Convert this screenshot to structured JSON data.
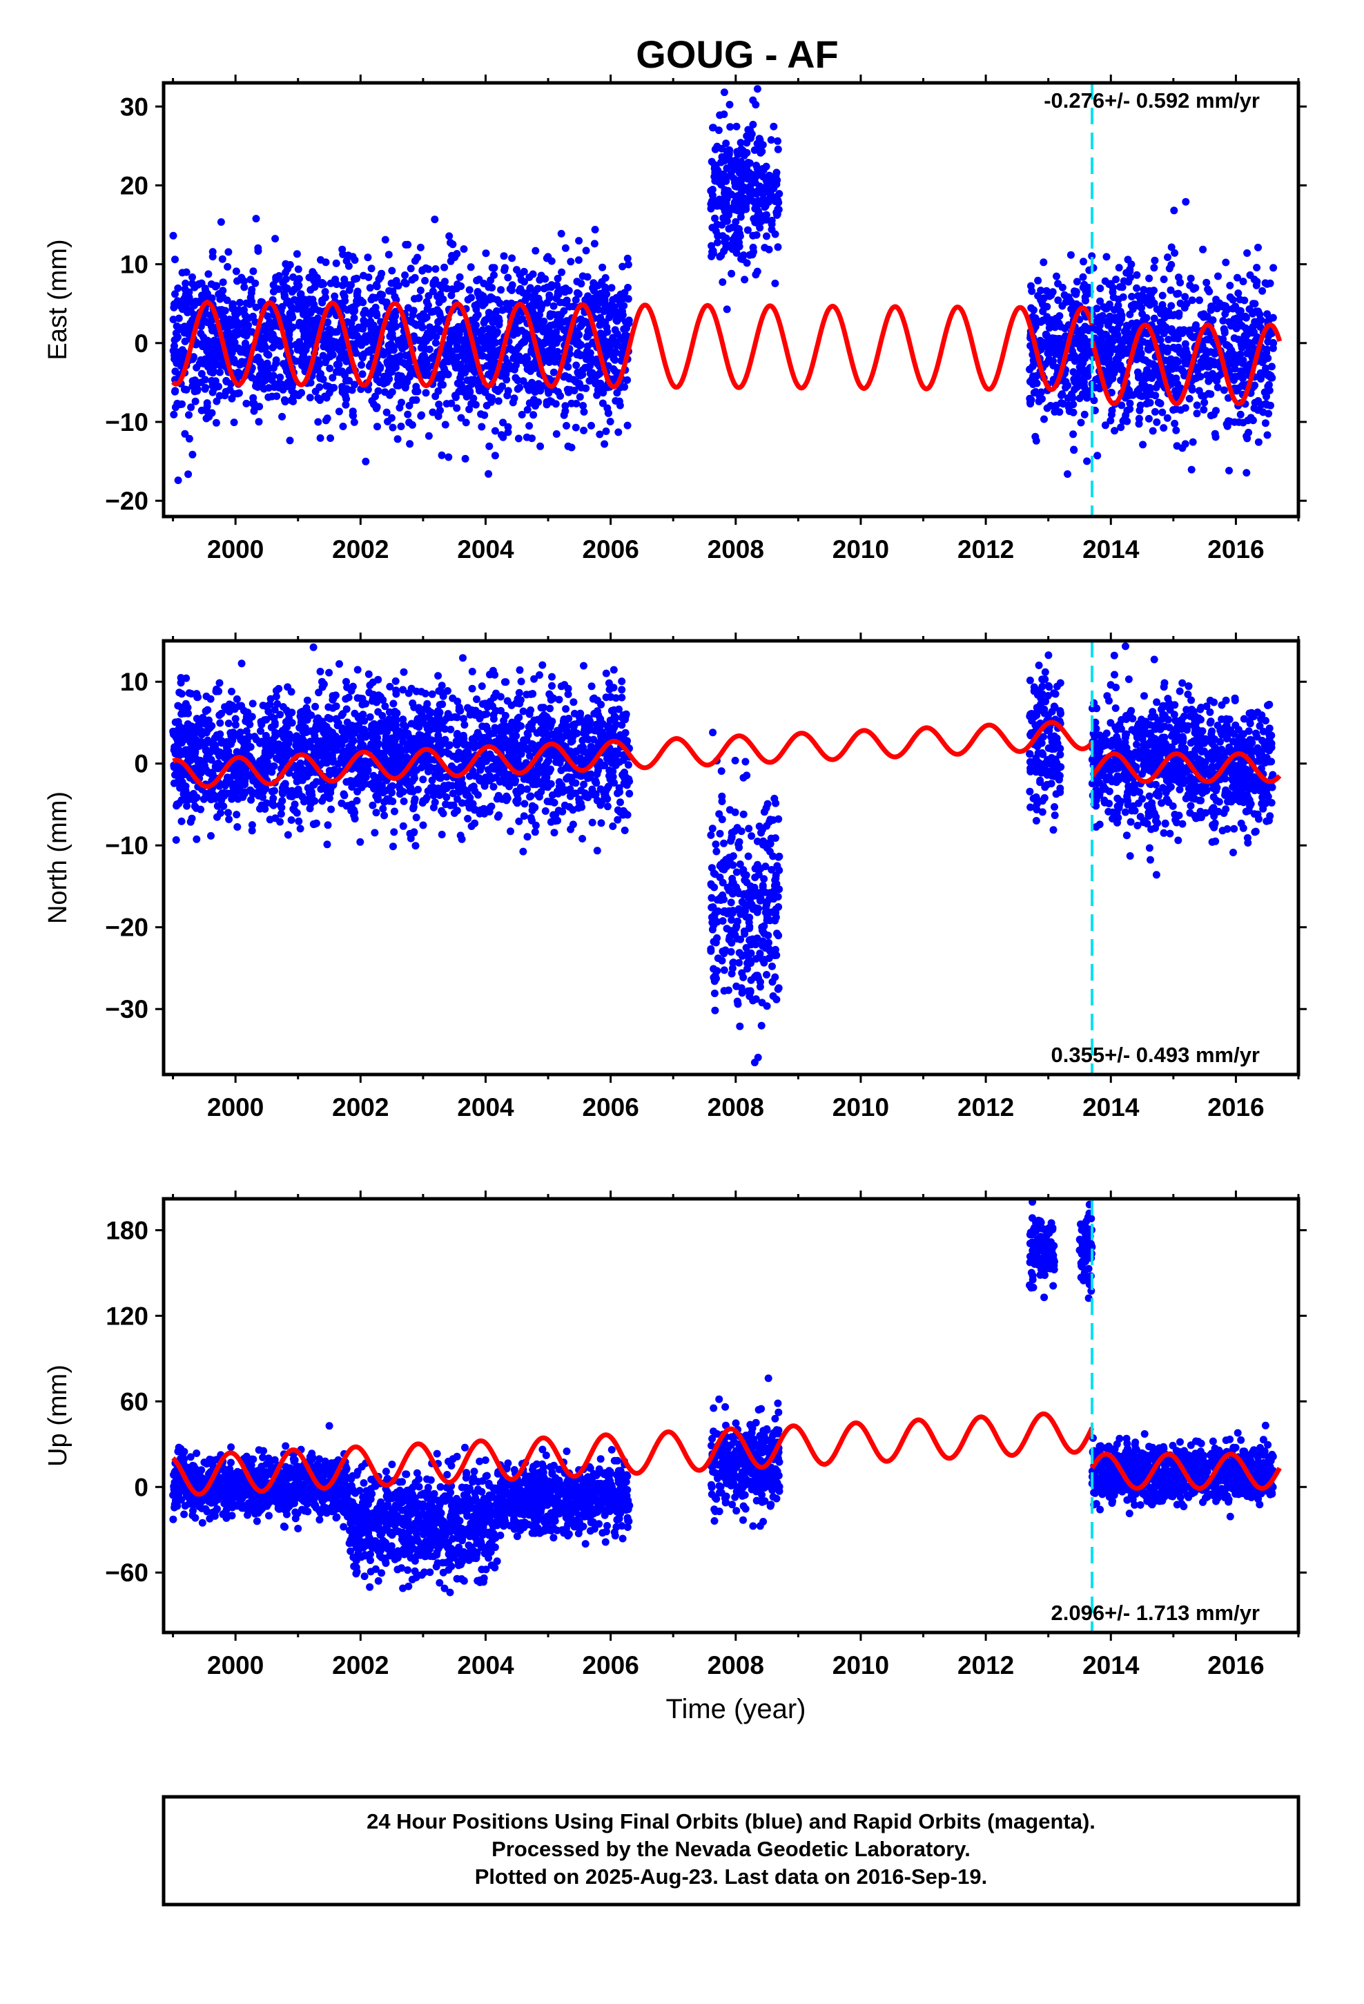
{
  "title": "GOUG - AF",
  "xlabel": "Time (year)",
  "footer": {
    "line1": "24 Hour Positions Using Final Orbits (blue) and Rapid Orbits (magenta).",
    "line2": "Processed by the Nevada Geodetic Laboratory.",
    "line3": "Plotted on 2025-Aug-23. Last data on 2016-Sep-19."
  },
  "colors": {
    "final_orbits": "#0000ff",
    "model": "#ff0000",
    "equipment_change": "#00e0f0",
    "frame": "#000000"
  },
  "chart_data": [
    {
      "type": "scatter",
      "panel": "east",
      "ylabel": "East (mm)",
      "ylim": [
        -22,
        33
      ],
      "yticks": [
        -20,
        -10,
        0,
        10,
        20,
        30
      ],
      "xlim": [
        1998.85,
        2017.0
      ],
      "xticks": [
        2000,
        2002,
        2004,
        2006,
        2008,
        2010,
        2012,
        2014,
        2016
      ],
      "rate_text": "-0.276+/- 0.592 mm/yr",
      "rate_position": "top-right",
      "equipment_change_year": 2013.7,
      "data_segments": [
        {
          "x": [
            1999.0,
            2006.3
          ],
          "mean": 0.0,
          "spread": 5.0
        },
        {
          "x": [
            2007.6,
            2008.7
          ],
          "mean": 19.5,
          "spread": 4.5
        },
        {
          "x": [
            2012.7,
            2016.6
          ],
          "mean": -1.0,
          "spread": 5.0
        }
      ],
      "model": {
        "segments": [
          {
            "x": [
              1999.0,
              2013.7
            ],
            "offset": 0.0,
            "trend": -0.05,
            "amplitude": 5.2,
            "peak_phase": 0.55
          },
          {
            "x": [
              2013.7,
              2016.7
            ],
            "offset": -2.7,
            "trend": 0.0,
            "amplitude": 5.0,
            "peak_phase": 0.55
          }
        ]
      }
    },
    {
      "type": "scatter",
      "panel": "north",
      "ylabel": "North (mm)",
      "ylim": [
        -38,
        15
      ],
      "yticks": [
        -30,
        -20,
        -10,
        0,
        10
      ],
      "xlim": [
        1998.85,
        2017.0
      ],
      "xticks": [
        2000,
        2002,
        2004,
        2006,
        2008,
        2010,
        2012,
        2014,
        2016
      ],
      "rate_text": "0.355+/- 0.493 mm/yr",
      "rate_position": "bottom-right",
      "equipment_change_year": 2013.7,
      "data_segments": [
        {
          "x": [
            1999.0,
            2006.3
          ],
          "mean": 1.0,
          "spread": 4.0
        },
        {
          "x": [
            2007.6,
            2008.7
          ],
          "mean": -17.0,
          "spread": 7.0
        },
        {
          "x": [
            2012.7,
            2013.2
          ],
          "mean": 2.0,
          "spread": 4.0
        },
        {
          "x": [
            2013.7,
            2016.6
          ],
          "mean": 0.0,
          "spread": 4.0
        }
      ],
      "model": {
        "segments": [
          {
            "x": [
              1999.0,
              2013.7
            ],
            "offset": -1.3,
            "trend": 0.33,
            "amplitude": 1.7,
            "peak_phase": 0.05
          },
          {
            "x": [
              2013.7,
              2016.7
            ],
            "offset": -0.5,
            "trend": 0.0,
            "amplitude": 1.7,
            "peak_phase": 0.05
          }
        ]
      }
    },
    {
      "type": "scatter",
      "panel": "up",
      "ylabel": "Up (mm)",
      "ylim": [
        -102,
        202
      ],
      "yticks": [
        -60,
        0,
        60,
        120,
        180
      ],
      "xlim": [
        1998.85,
        2017.0
      ],
      "xticks": [
        2000,
        2002,
        2004,
        2006,
        2008,
        2010,
        2012,
        2014,
        2016
      ],
      "rate_text": "2.096+/- 1.713 mm/yr",
      "rate_position": "bottom-right",
      "equipment_change_year": 2013.7,
      "data_segments": [
        {
          "x": [
            1999.0,
            2001.8
          ],
          "mean": 0.0,
          "spread": 10.0
        },
        {
          "x": [
            2001.8,
            2004.2
          ],
          "mean": -25.0,
          "spread": 18.0
        },
        {
          "x": [
            2004.2,
            2006.3
          ],
          "mean": -8.0,
          "spread": 12.0
        },
        {
          "x": [
            2007.6,
            2008.7
          ],
          "mean": 15.0,
          "spread": 16.0
        },
        {
          "x": [
            2012.7,
            2013.1
          ],
          "mean": 165.0,
          "spread": 12.0
        },
        {
          "x": [
            2013.5,
            2013.7
          ],
          "mean": 168.0,
          "spread": 12.0
        },
        {
          "x": [
            2013.7,
            2016.6
          ],
          "mean": 10.0,
          "spread": 10.0
        }
      ],
      "model": {
        "segments": [
          {
            "x": [
              1999.0,
              2013.7
            ],
            "offset": 8.0,
            "trend": 2.1,
            "amplitude": 14.0,
            "peak_phase": 0.92
          },
          {
            "x": [
              2013.7,
              2016.7
            ],
            "offset": 11.0,
            "trend": 0.0,
            "amplitude": 12.0,
            "peak_phase": 0.92
          }
        ]
      }
    }
  ]
}
